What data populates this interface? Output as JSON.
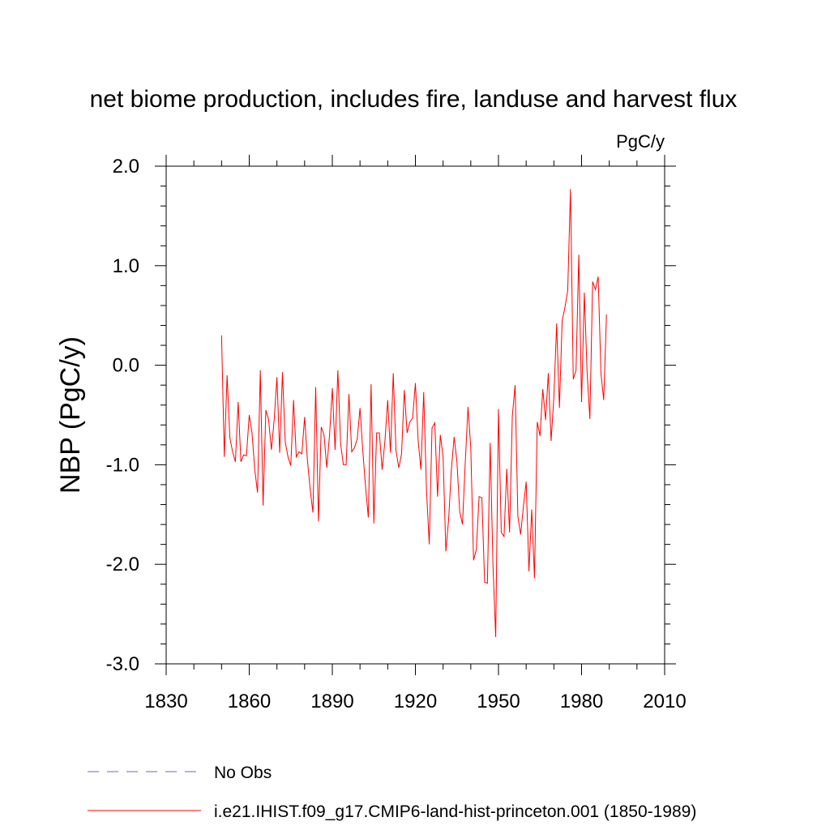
{
  "chart_data": {
    "type": "line",
    "title": "net biome production, includes fire, landuse and harvest flux",
    "units": "PgC/y",
    "xlabel": "",
    "ylabel": "NBP  (PgC/y)",
    "xlim": [
      1830,
      2010
    ],
    "ylim": [
      -3.0,
      2.0
    ],
    "x_ticks": [
      1830,
      1860,
      1890,
      1920,
      1950,
      1980,
      2010
    ],
    "x_tick_labels": [
      "1830",
      "1860",
      "1890",
      "1920",
      "1950",
      "1980",
      "2010"
    ],
    "y_ticks": [
      2.0,
      1.0,
      0.0,
      -1.0,
      -2.0,
      -3.0
    ],
    "y_tick_labels": [
      "2.0",
      "1.0",
      "0.0",
      "-1.0",
      "-2.0",
      "-3.0"
    ],
    "grid": false,
    "legend_placement": "bottom-left, below plot",
    "series": [
      {
        "name": "No Obs",
        "color": "#6a6ab8",
        "dash": "dashed",
        "x": [],
        "y": []
      },
      {
        "name": "i.e21.IHIST.f09_g17.CMIP6-land-hist-princeton.001 (1850-1989)",
        "color": "#ff0000",
        "dash": "solid",
        "x": [
          1850,
          1851,
          1852,
          1853,
          1854,
          1855,
          1856,
          1857,
          1858,
          1859,
          1860,
          1861,
          1862,
          1863,
          1864,
          1865,
          1866,
          1867,
          1868,
          1869,
          1870,
          1871,
          1872,
          1873,
          1874,
          1875,
          1876,
          1877,
          1878,
          1879,
          1880,
          1881,
          1882,
          1883,
          1884,
          1885,
          1886,
          1887,
          1888,
          1889,
          1890,
          1891,
          1892,
          1893,
          1894,
          1895,
          1896,
          1897,
          1898,
          1899,
          1900,
          1901,
          1902,
          1903,
          1904,
          1905,
          1906,
          1907,
          1908,
          1909,
          1910,
          1911,
          1912,
          1913,
          1914,
          1915,
          1916,
          1917,
          1918,
          1919,
          1920,
          1921,
          1922,
          1923,
          1924,
          1925,
          1926,
          1927,
          1928,
          1929,
          1930,
          1931,
          1932,
          1933,
          1934,
          1935,
          1936,
          1937,
          1938,
          1939,
          1940,
          1941,
          1942,
          1943,
          1944,
          1945,
          1946,
          1947,
          1948,
          1949,
          1950,
          1951,
          1952,
          1953,
          1954,
          1955,
          1956,
          1957,
          1958,
          1959,
          1960,
          1961,
          1962,
          1963,
          1964,
          1965,
          1966,
          1967,
          1968,
          1969,
          1970,
          1971,
          1972,
          1973,
          1974,
          1975,
          1976,
          1977,
          1978,
          1979,
          1980,
          1981,
          1982,
          1983,
          1984,
          1985,
          1986,
          1987,
          1988,
          1989
        ],
        "y": [
          0.3,
          -0.92,
          -0.1,
          -0.73,
          -0.87,
          -0.97,
          -0.37,
          -0.97,
          -0.9,
          -0.91,
          -0.5,
          -0.68,
          -1.05,
          -1.28,
          -0.05,
          -1.41,
          -0.45,
          -0.55,
          -0.85,
          -0.55,
          -0.12,
          -0.88,
          -0.07,
          -0.77,
          -0.92,
          -1.01,
          -0.35,
          -0.92,
          -0.87,
          -0.89,
          -0.52,
          -0.95,
          -1.25,
          -1.48,
          -0.22,
          -1.57,
          -0.62,
          -0.7,
          -1.03,
          -0.7,
          -0.23,
          -0.85,
          -0.05,
          -0.79,
          -1.0,
          -1.0,
          -0.29,
          -0.87,
          -0.83,
          -0.74,
          -0.43,
          -0.86,
          -1.22,
          -1.53,
          -0.19,
          -1.59,
          -0.68,
          -0.68,
          -1.05,
          -0.76,
          -0.35,
          -0.88,
          -0.08,
          -0.86,
          -1.03,
          -0.89,
          -0.25,
          -0.68,
          -0.57,
          -0.53,
          -0.18,
          -0.76,
          -1.05,
          -0.27,
          -1.25,
          -1.8,
          -0.63,
          -0.58,
          -1.32,
          -0.7,
          -0.92,
          -1.87,
          -1.55,
          -1.04,
          -0.72,
          -0.97,
          -1.47,
          -1.6,
          -0.98,
          -0.42,
          -0.83,
          -1.96,
          -1.85,
          -1.32,
          -1.33,
          -2.18,
          -2.19,
          -0.78,
          -2.0,
          -2.73,
          -0.44,
          -1.68,
          -1.72,
          -1.04,
          -1.68,
          -0.51,
          -0.2,
          -1.52,
          -1.7,
          -1.42,
          -1.17,
          -2.07,
          -1.45,
          -2.14,
          -0.57,
          -0.71,
          -0.24,
          -0.55,
          -0.08,
          -0.76,
          -0.32,
          0.42,
          -0.43,
          0.45,
          0.58,
          0.75,
          1.77,
          -0.14,
          -0.05,
          1.11,
          -0.37,
          0.73,
          -0.07,
          -0.54,
          0.84,
          0.76,
          0.89,
          -0.08,
          -0.35,
          0.51
        ]
      }
    ]
  }
}
